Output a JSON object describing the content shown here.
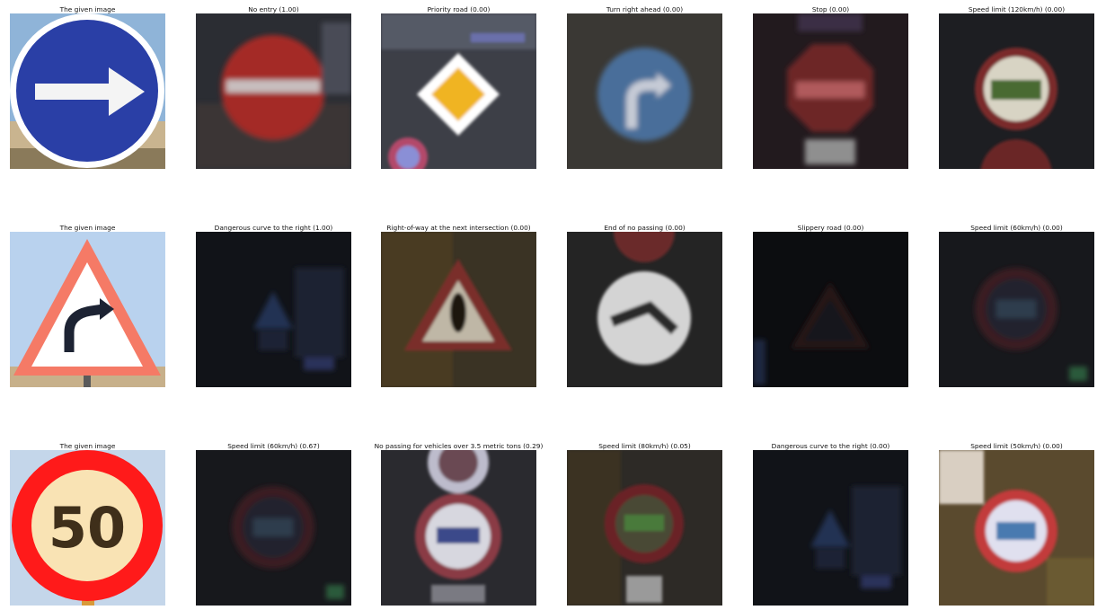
{
  "rows": [
    {
      "given": {
        "title": "The given image",
        "kind": "given-right-arrow"
      },
      "predictions": [
        {
          "title": "No entry (1.00)",
          "kind": "no-entry"
        },
        {
          "title": "Priority road (0.00)",
          "kind": "priority-road"
        },
        {
          "title": "Turn right ahead (0.00)",
          "kind": "turn-right"
        },
        {
          "title": "Stop (0.00)",
          "kind": "stop"
        },
        {
          "title": "Speed limit (120km/h) (0.00)",
          "kind": "speed-120"
        }
      ]
    },
    {
      "given": {
        "title": "The given image",
        "kind": "given-curve"
      },
      "predictions": [
        {
          "title": "Dangerous curve to the right (1.00)",
          "kind": "dark-curve"
        },
        {
          "title": "Right-of-way at the next intersection (0.00)",
          "kind": "right-of-way"
        },
        {
          "title": "End of no passing (0.00)",
          "kind": "end-no-passing"
        },
        {
          "title": "Slippery road (0.00)",
          "kind": "slippery"
        },
        {
          "title": "Speed limit (60km/h) (0.00)",
          "kind": "speed-60-dark"
        }
      ]
    },
    {
      "given": {
        "title": "The given image",
        "kind": "given-50"
      },
      "predictions": [
        {
          "title": "Speed limit (60km/h) (0.67)",
          "kind": "speed-60-dark"
        },
        {
          "title": "No passing for vehicles over 3.5 metric tons (0.29)",
          "kind": "no-passing-trucks"
        },
        {
          "title": "Speed limit (80km/h) (0.05)",
          "kind": "speed-80"
        },
        {
          "title": "Dangerous curve to the right (0.00)",
          "kind": "dark-curve"
        },
        {
          "title": "Speed limit (50km/h) (0.00)",
          "kind": "speed-50-photo"
        }
      ]
    }
  ],
  "given_labels": {
    "speed_50": "50"
  }
}
